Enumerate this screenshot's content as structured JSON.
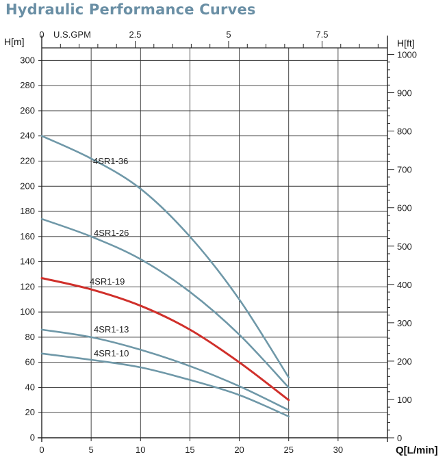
{
  "title": "Hydraulic Performance Curves",
  "chart_data": {
    "type": "line",
    "title": "Hydraulic Performance Curves",
    "xlabel": "Q[L/min]",
    "ylabel": "H[m]",
    "y2label": "H[ft]",
    "x2label": "U.S.GPM",
    "xlim": [
      0,
      35
    ],
    "ylim": [
      0,
      310
    ],
    "y2lim": [
      0,
      1017
    ],
    "x2lim": [
      0,
      9.25
    ],
    "grid": true,
    "x_ticks": [
      0,
      5,
      10,
      15,
      20,
      25,
      30
    ],
    "x_tick_labels": [
      "0",
      "5",
      "10",
      "15",
      "20",
      "25",
      "30"
    ],
    "y_ticks": [
      0,
      20,
      40,
      60,
      80,
      100,
      120,
      140,
      160,
      180,
      200,
      220,
      240,
      260,
      280,
      300
    ],
    "y_tick_labels": [
      "0",
      "20",
      "40",
      "60",
      "80",
      "100",
      "120",
      "140",
      "160",
      "180",
      "200",
      "220",
      "240",
      "260",
      "280",
      "300"
    ],
    "y2_ticks": [
      0,
      100,
      200,
      300,
      400,
      500,
      600,
      700,
      800,
      900,
      1000
    ],
    "y2_tick_labels": [
      "0",
      "100",
      "200",
      "300",
      "400",
      "500",
      "600",
      "700",
      "800",
      "900",
      "1000"
    ],
    "x2_ticks": [
      0,
      2.5,
      5,
      7.5
    ],
    "x2_tick_labels": [
      "0",
      "2.5",
      "5",
      "7.5"
    ],
    "series": [
      {
        "name": "4SR1-36",
        "color": "#6f98a8",
        "highlight": false,
        "x": [
          0,
          5,
          10,
          15,
          20,
          25
        ],
        "y": [
          240,
          222,
          198,
          160,
          110,
          48
        ]
      },
      {
        "name": "4SR1-26",
        "color": "#6f98a8",
        "highlight": false,
        "x": [
          0,
          5,
          10,
          15,
          20,
          25
        ],
        "y": [
          174,
          160,
          142,
          116,
          82,
          40
        ]
      },
      {
        "name": "4SR1-19",
        "color": "#d0302b",
        "highlight": true,
        "x": [
          0,
          5,
          10,
          15,
          20,
          25
        ],
        "y": [
          127,
          118,
          105,
          86,
          60,
          30
        ]
      },
      {
        "name": "4SR1-13",
        "color": "#6f98a8",
        "highlight": false,
        "x": [
          0,
          5,
          10,
          15,
          20,
          25
        ],
        "y": [
          86,
          80,
          70,
          57,
          41,
          22
        ]
      },
      {
        "name": "4SR1-10",
        "color": "#6f98a8",
        "highlight": false,
        "x": [
          0,
          5,
          10,
          15,
          20,
          25
        ],
        "y": [
          67,
          62,
          56,
          46,
          34,
          17
        ]
      }
    ]
  }
}
